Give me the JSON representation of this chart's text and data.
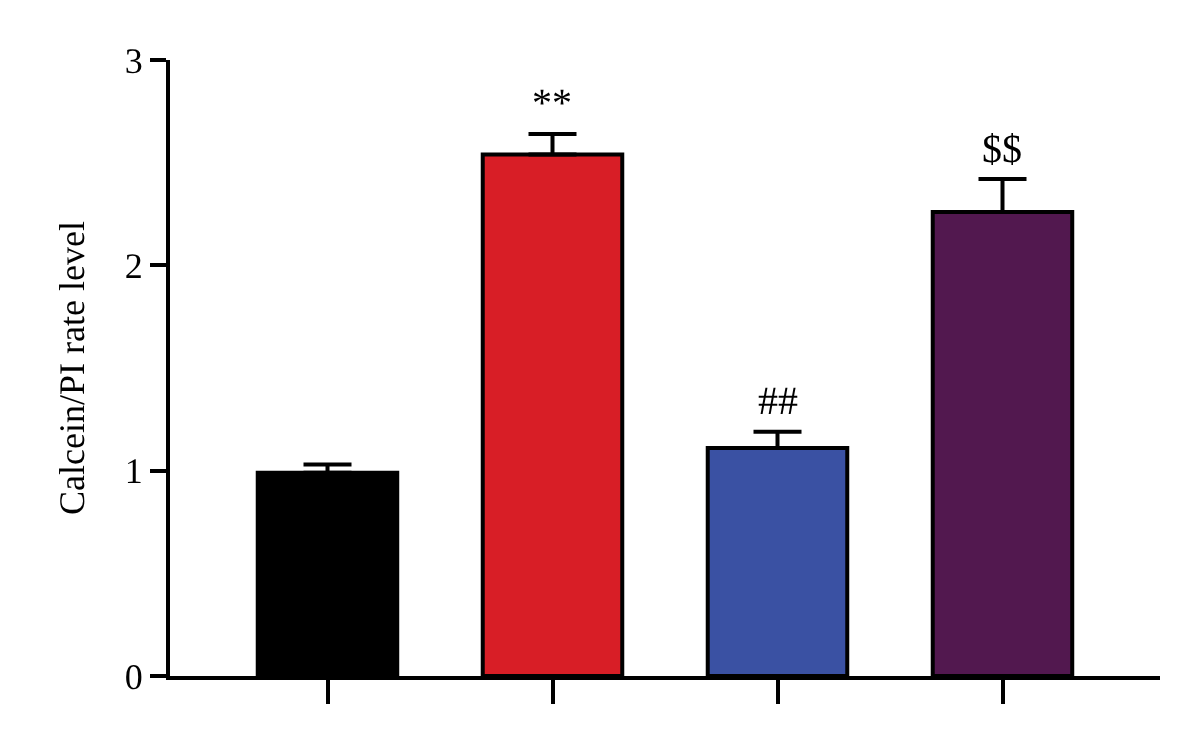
{
  "chart_data": {
    "type": "bar",
    "ylabel": "Calcein/PI rate level",
    "categories": [
      null,
      null,
      null,
      null
    ],
    "values": [
      0.99,
      2.54,
      1.11,
      2.26
    ],
    "colors": [
      "#000000",
      "#d81e26",
      "#3a51a3",
      "#52184f"
    ],
    "errors": [
      [
        0.99,
        1.03
      ],
      [
        2.54,
        2.64
      ],
      [
        1.11,
        1.19
      ],
      [
        2.26,
        2.42
      ]
    ],
    "ylim": [
      0,
      3
    ],
    "yticks": [
      0,
      1,
      2,
      3
    ],
    "annotations": [
      {
        "text": "**",
        "y": 2.64
      },
      {
        "text": "##",
        "y": 1.19
      },
      {
        "text": "$$",
        "y": 2.42
      }
    ]
  }
}
